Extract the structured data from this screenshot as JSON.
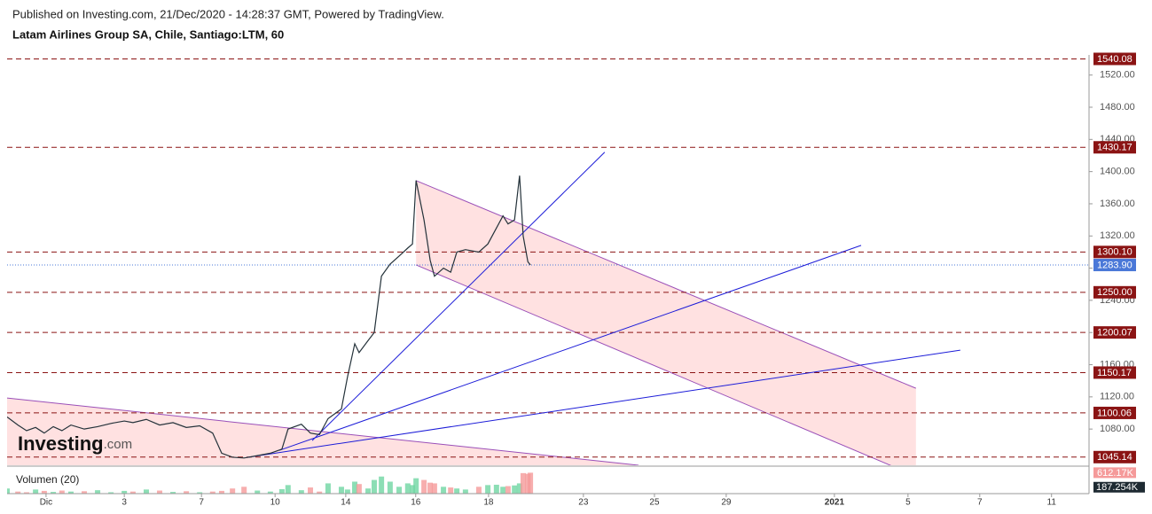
{
  "header": {
    "published": "Published on Investing.com, 21/Dec/2020 - 14:28:37 GMT, Powered by TradingView.",
    "symbol": "Latam Airlines Group SA, Chile, Santiago:LTM, 60"
  },
  "logo": {
    "name": "Investing",
    "suffix": ".com"
  },
  "chart_data": {
    "type": "line",
    "color": "#24323a",
    "x": [
      0,
      0.3,
      0.54,
      0.79,
      1.03,
      1.28,
      1.52,
      1.77,
      2.14,
      2.51,
      2.88,
      3.25,
      3.49,
      3.86,
      4.23,
      4.6,
      4.97,
      5.34,
      5.7,
      5.95,
      6.25,
      6.57,
      6.94,
      7.3,
      7.62,
      7.79,
      8.16,
      8.41,
      8.66,
      8.9,
      9.27,
      9.44,
      9.64,
      9.76,
      10.01,
      10.18,
      10.38,
      10.62,
      10.87,
      11.11,
      11.24,
      11.34,
      11.56,
      11.73,
      11.85,
      12.1,
      12.3,
      12.47,
      12.71,
      13.08,
      13.33,
      13.57,
      13.75,
      13.89,
      14.07,
      14.21,
      14.31,
      14.44,
      14.51
    ],
    "values": [
      1095,
      1085,
      1078,
      1082,
      1075,
      1083,
      1078,
      1085,
      1080,
      1083,
      1087,
      1090,
      1088,
      1092,
      1085,
      1088,
      1082,
      1084,
      1075,
      1050,
      1045,
      1044,
      1047,
      1050,
      1055,
      1080,
      1086,
      1075,
      1073,
      1093,
      1105,
      1145,
      1186,
      1175,
      1190,
      1200,
      1270,
      1285,
      1295,
      1305,
      1310,
      1389,
      1340,
      1290,
      1270,
      1280,
      1275,
      1300,
      1303,
      1300,
      1310,
      1330,
      1345,
      1335,
      1340,
      1395,
      1320,
      1288,
      1284
    ],
    "xlim": [
      0,
      30
    ],
    "xticks": [
      {
        "value": 1.08,
        "label": "Dic"
      },
      {
        "value": 3.25,
        "label": "3"
      },
      {
        "value": 5.39,
        "label": "7"
      },
      {
        "value": 7.43,
        "label": "10"
      },
      {
        "value": 9.39,
        "label": "14"
      },
      {
        "value": 11.33,
        "label": "16"
      },
      {
        "value": 13.35,
        "label": "18"
      },
      {
        "value": 15.98,
        "label": "23"
      },
      {
        "value": 17.95,
        "label": "25"
      },
      {
        "value": 19.94,
        "label": "29"
      },
      {
        "value": 22.94,
        "label": "2021"
      },
      {
        "value": 24.98,
        "label": "5"
      },
      {
        "value": 26.97,
        "label": "7"
      },
      {
        "value": 28.96,
        "label": "11"
      }
    ],
    "ylim": [
      1035,
      1545
    ],
    "yticks": [
      {
        "value": 1080,
        "label": "1080.00"
      },
      {
        "value": 1120,
        "label": "1120.00"
      },
      {
        "value": 1160,
        "label": "1160.00"
      },
      {
        "value": 1200,
        "label": "1200.00"
      },
      {
        "value": 1240,
        "label": "1240.00"
      },
      {
        "value": 1280,
        "label": "1280.00"
      },
      {
        "value": 1320,
        "label": "1320.00"
      },
      {
        "value": 1360,
        "label": "1360.00"
      },
      {
        "value": 1400,
        "label": "1400.00"
      },
      {
        "value": 1440,
        "label": "1440.00"
      },
      {
        "value": 1480,
        "label": "1480.00"
      },
      {
        "value": 1520,
        "label": "1520.00"
      }
    ],
    "levels": {
      "color": "#8b1414",
      "values": [
        1540.08,
        1430.17,
        {
          "value": 1300.1,
          "label": "1300.10"
        },
        {
          "value": 1250,
          "label": "1250.00"
        },
        1200.07,
        1150.17,
        1100.06,
        1045.14
      ]
    },
    "last_price": {
      "value": 1283.9,
      "label": "1283.90",
      "color": "#4a78d8"
    },
    "trendlines": {
      "color": "#1c1cd8",
      "lines": [
        [
          [
            8.46,
            1065.7
          ],
          [
            16.57,
            1424.1
          ]
        ],
        [
          [
            7.55,
            1053.5
          ],
          [
            23.68,
            1308.3
          ]
        ],
        [
          [
            6.64,
            1044.7
          ],
          [
            26.43,
            1178.1
          ]
        ]
      ]
    },
    "channels": {
      "fill": "#ffdcdc",
      "edge": "#9a4fb8",
      "shapes": [
        [
          [
            11.34,
            1388.8
          ],
          [
            25.2,
            1130.7
          ],
          [
            25.2,
            1021.5
          ],
          [
            11.34,
            1284
          ]
        ],
        [
          [
            0,
            1118.6
          ],
          [
            17.51,
            1035
          ],
          [
            0,
            1035
          ]
        ]
      ]
    },
    "volume": {
      "label": "Volumen (20)",
      "ylim": [
        0,
        700
      ],
      "up_color": "#6fd6a2",
      "down_color": "#f59a9a",
      "values": [
        150,
        60,
        40,
        120,
        80,
        50,
        90,
        60,
        70,
        100,
        40,
        80,
        60,
        120,
        90,
        50,
        70,
        40,
        60,
        80,
        150,
        200,
        90,
        60,
        130,
        250,
        100,
        180,
        60,
        300,
        200,
        120,
        350,
        280,
        150,
        400,
        500,
        350,
        200,
        300,
        250,
        450,
        400,
        320,
        300,
        200,
        180,
        150,
        120,
        200,
        250,
        260,
        200,
        220,
        240,
        300,
        600,
        580,
        612.17
      ],
      "last_label": "612.17K",
      "ma": {
        "value": 187.254,
        "label": "187.254K"
      }
    }
  }
}
